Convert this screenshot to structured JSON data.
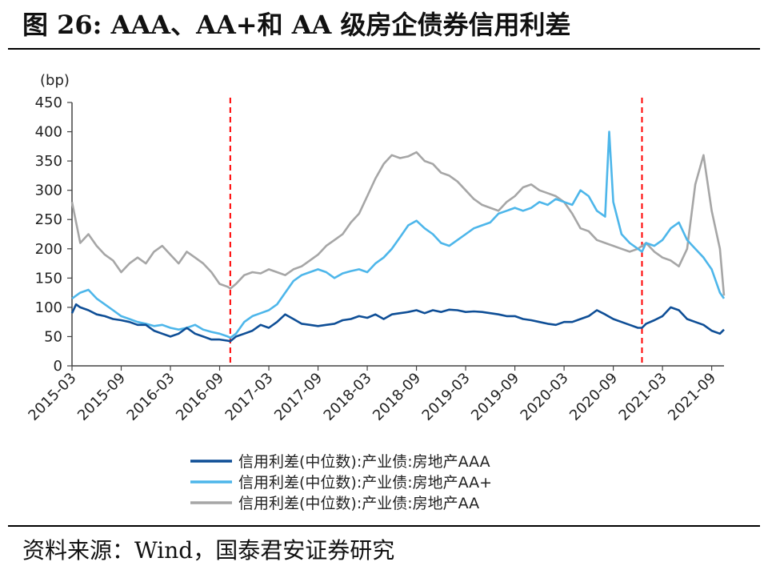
{
  "figure": {
    "title": "图 26:  AAA、AA+和 AA 级房企债券信用利差",
    "source": "资料来源：Wind，国泰君安证券研究"
  },
  "chart_data": {
    "type": "line",
    "unit_label": "(bp)",
    "ylim": [
      0,
      450
    ],
    "yticks": [
      0,
      50,
      100,
      150,
      200,
      250,
      300,
      350,
      400,
      450
    ],
    "xticks": [
      "2015-03",
      "2015-09",
      "2016-03",
      "2016-09",
      "2017-03",
      "2017-09",
      "2018-03",
      "2018-09",
      "2019-03",
      "2019-09",
      "2020-03",
      "2020-09",
      "2021-03",
      "2021-09"
    ],
    "xlim": [
      0,
      79.5
    ],
    "reference_lines": [
      {
        "x": 19.3,
        "style": "dashed",
        "color": "#ff0000"
      },
      {
        "x": 69.5,
        "style": "dashed",
        "color": "#ff0000"
      }
    ],
    "legend_position": "bottom",
    "series": [
      {
        "name": "信用利差(中位数):产业债:房地产AAA",
        "color": "#0e4e96",
        "points": [
          [
            0,
            90
          ],
          [
            0.5,
            105
          ],
          [
            1,
            100
          ],
          [
            2,
            95
          ],
          [
            3,
            88
          ],
          [
            4,
            85
          ],
          [
            5,
            80
          ],
          [
            6,
            78
          ],
          [
            7,
            75
          ],
          [
            8,
            70
          ],
          [
            9,
            70
          ],
          [
            10,
            60
          ],
          [
            11,
            55
          ],
          [
            12,
            50
          ],
          [
            13,
            55
          ],
          [
            14,
            65
          ],
          [
            15,
            55
          ],
          [
            16,
            50
          ],
          [
            17,
            45
          ],
          [
            18,
            45
          ],
          [
            19,
            43
          ],
          [
            19.3,
            42
          ],
          [
            20,
            50
          ],
          [
            21,
            55
          ],
          [
            22,
            60
          ],
          [
            23,
            70
          ],
          [
            24,
            65
          ],
          [
            25,
            75
          ],
          [
            26,
            88
          ],
          [
            27,
            80
          ],
          [
            28,
            72
          ],
          [
            29,
            70
          ],
          [
            30,
            68
          ],
          [
            31,
            70
          ],
          [
            32,
            72
          ],
          [
            33,
            78
          ],
          [
            34,
            80
          ],
          [
            35,
            85
          ],
          [
            36,
            82
          ],
          [
            37,
            88
          ],
          [
            38,
            80
          ],
          [
            39,
            88
          ],
          [
            40,
            90
          ],
          [
            41,
            92
          ],
          [
            42,
            95
          ],
          [
            43,
            90
          ],
          [
            44,
            95
          ],
          [
            45,
            92
          ],
          [
            46,
            96
          ],
          [
            47,
            95
          ],
          [
            48,
            92
          ],
          [
            49,
            93
          ],
          [
            50,
            92
          ],
          [
            51,
            90
          ],
          [
            52,
            88
          ],
          [
            53,
            85
          ],
          [
            54,
            85
          ],
          [
            55,
            80
          ],
          [
            56,
            78
          ],
          [
            57,
            75
          ],
          [
            58,
            72
          ],
          [
            59,
            70
          ],
          [
            60,
            75
          ],
          [
            61,
            75
          ],
          [
            62,
            80
          ],
          [
            63,
            85
          ],
          [
            64,
            95
          ],
          [
            65,
            88
          ],
          [
            66,
            80
          ],
          [
            67,
            75
          ],
          [
            68,
            70
          ],
          [
            69,
            65
          ],
          [
            69.5,
            65
          ],
          [
            70,
            72
          ],
          [
            71,
            78
          ],
          [
            72,
            85
          ],
          [
            73,
            100
          ],
          [
            74,
            95
          ],
          [
            75,
            80
          ],
          [
            76,
            75
          ],
          [
            77,
            70
          ],
          [
            78,
            60
          ],
          [
            79,
            55
          ],
          [
            79.5,
            62
          ]
        ]
      },
      {
        "name": "信用利差(中位数):产业债:房地产AA+",
        "color": "#4db6ea",
        "points": [
          [
            0,
            115
          ],
          [
            1,
            125
          ],
          [
            2,
            130
          ],
          [
            3,
            115
          ],
          [
            4,
            105
          ],
          [
            5,
            95
          ],
          [
            6,
            85
          ],
          [
            7,
            80
          ],
          [
            8,
            75
          ],
          [
            9,
            72
          ],
          [
            10,
            68
          ],
          [
            11,
            70
          ],
          [
            12,
            65
          ],
          [
            13,
            62
          ],
          [
            14,
            65
          ],
          [
            15,
            70
          ],
          [
            16,
            62
          ],
          [
            17,
            58
          ],
          [
            18,
            55
          ],
          [
            19,
            50
          ],
          [
            19.3,
            48
          ],
          [
            20,
            55
          ],
          [
            21,
            75
          ],
          [
            22,
            85
          ],
          [
            23,
            90
          ],
          [
            24,
            95
          ],
          [
            25,
            105
          ],
          [
            26,
            125
          ],
          [
            27,
            145
          ],
          [
            28,
            155
          ],
          [
            29,
            160
          ],
          [
            30,
            165
          ],
          [
            31,
            160
          ],
          [
            32,
            150
          ],
          [
            33,
            158
          ],
          [
            34,
            162
          ],
          [
            35,
            165
          ],
          [
            36,
            160
          ],
          [
            37,
            175
          ],
          [
            38,
            185
          ],
          [
            39,
            200
          ],
          [
            40,
            220
          ],
          [
            41,
            240
          ],
          [
            42,
            248
          ],
          [
            43,
            235
          ],
          [
            44,
            225
          ],
          [
            45,
            210
          ],
          [
            46,
            205
          ],
          [
            47,
            215
          ],
          [
            48,
            225
          ],
          [
            49,
            235
          ],
          [
            50,
            240
          ],
          [
            51,
            245
          ],
          [
            52,
            260
          ],
          [
            53,
            265
          ],
          [
            54,
            270
          ],
          [
            55,
            265
          ],
          [
            56,
            270
          ],
          [
            57,
            280
          ],
          [
            58,
            275
          ],
          [
            59,
            285
          ],
          [
            60,
            280
          ],
          [
            61,
            275
          ],
          [
            62,
            300
          ],
          [
            63,
            290
          ],
          [
            64,
            265
          ],
          [
            65,
            255
          ],
          [
            65.5,
            400
          ],
          [
            66,
            280
          ],
          [
            67,
            225
          ],
          [
            68,
            210
          ],
          [
            69,
            200
          ],
          [
            69.5,
            195
          ],
          [
            70,
            210
          ],
          [
            71,
            205
          ],
          [
            72,
            215
          ],
          [
            73,
            235
          ],
          [
            74,
            245
          ],
          [
            75,
            215
          ],
          [
            76,
            200
          ],
          [
            77,
            185
          ],
          [
            78,
            165
          ],
          [
            79,
            125
          ],
          [
            79.5,
            115
          ]
        ]
      },
      {
        "name": "信用利差(中位数):产业债:房地产AA",
        "color": "#a6a6a6",
        "points": [
          [
            0,
            280
          ],
          [
            1,
            210
          ],
          [
            2,
            225
          ],
          [
            3,
            205
          ],
          [
            4,
            190
          ],
          [
            5,
            180
          ],
          [
            6,
            160
          ],
          [
            7,
            175
          ],
          [
            8,
            185
          ],
          [
            9,
            175
          ],
          [
            10,
            195
          ],
          [
            11,
            205
          ],
          [
            12,
            190
          ],
          [
            13,
            175
          ],
          [
            14,
            195
          ],
          [
            15,
            185
          ],
          [
            16,
            175
          ],
          [
            17,
            160
          ],
          [
            18,
            140
          ],
          [
            19,
            135
          ],
          [
            19.3,
            132
          ],
          [
            20,
            140
          ],
          [
            21,
            155
          ],
          [
            22,
            160
          ],
          [
            23,
            158
          ],
          [
            24,
            165
          ],
          [
            25,
            160
          ],
          [
            26,
            155
          ],
          [
            27,
            165
          ],
          [
            28,
            170
          ],
          [
            29,
            180
          ],
          [
            30,
            190
          ],
          [
            31,
            205
          ],
          [
            32,
            215
          ],
          [
            33,
            225
          ],
          [
            34,
            245
          ],
          [
            35,
            260
          ],
          [
            36,
            290
          ],
          [
            37,
            320
          ],
          [
            38,
            345
          ],
          [
            39,
            360
          ],
          [
            40,
            355
          ],
          [
            41,
            358
          ],
          [
            42,
            365
          ],
          [
            43,
            350
          ],
          [
            44,
            345
          ],
          [
            45,
            330
          ],
          [
            46,
            325
          ],
          [
            47,
            315
          ],
          [
            48,
            300
          ],
          [
            49,
            285
          ],
          [
            50,
            275
          ],
          [
            51,
            270
          ],
          [
            52,
            265
          ],
          [
            53,
            280
          ],
          [
            54,
            290
          ],
          [
            55,
            305
          ],
          [
            56,
            310
          ],
          [
            57,
            300
          ],
          [
            58,
            295
          ],
          [
            59,
            290
          ],
          [
            60,
            280
          ],
          [
            61,
            260
          ],
          [
            62,
            235
          ],
          [
            63,
            230
          ],
          [
            64,
            215
          ],
          [
            65,
            210
          ],
          [
            66,
            205
          ],
          [
            67,
            200
          ],
          [
            68,
            195
          ],
          [
            69,
            200
          ],
          [
            69.5,
            205
          ],
          [
            70,
            210
          ],
          [
            71,
            195
          ],
          [
            72,
            185
          ],
          [
            73,
            180
          ],
          [
            74,
            170
          ],
          [
            75,
            200
          ],
          [
            76,
            310
          ],
          [
            77,
            360
          ],
          [
            78,
            265
          ],
          [
            79,
            200
          ],
          [
            79.5,
            120
          ]
        ]
      }
    ]
  }
}
